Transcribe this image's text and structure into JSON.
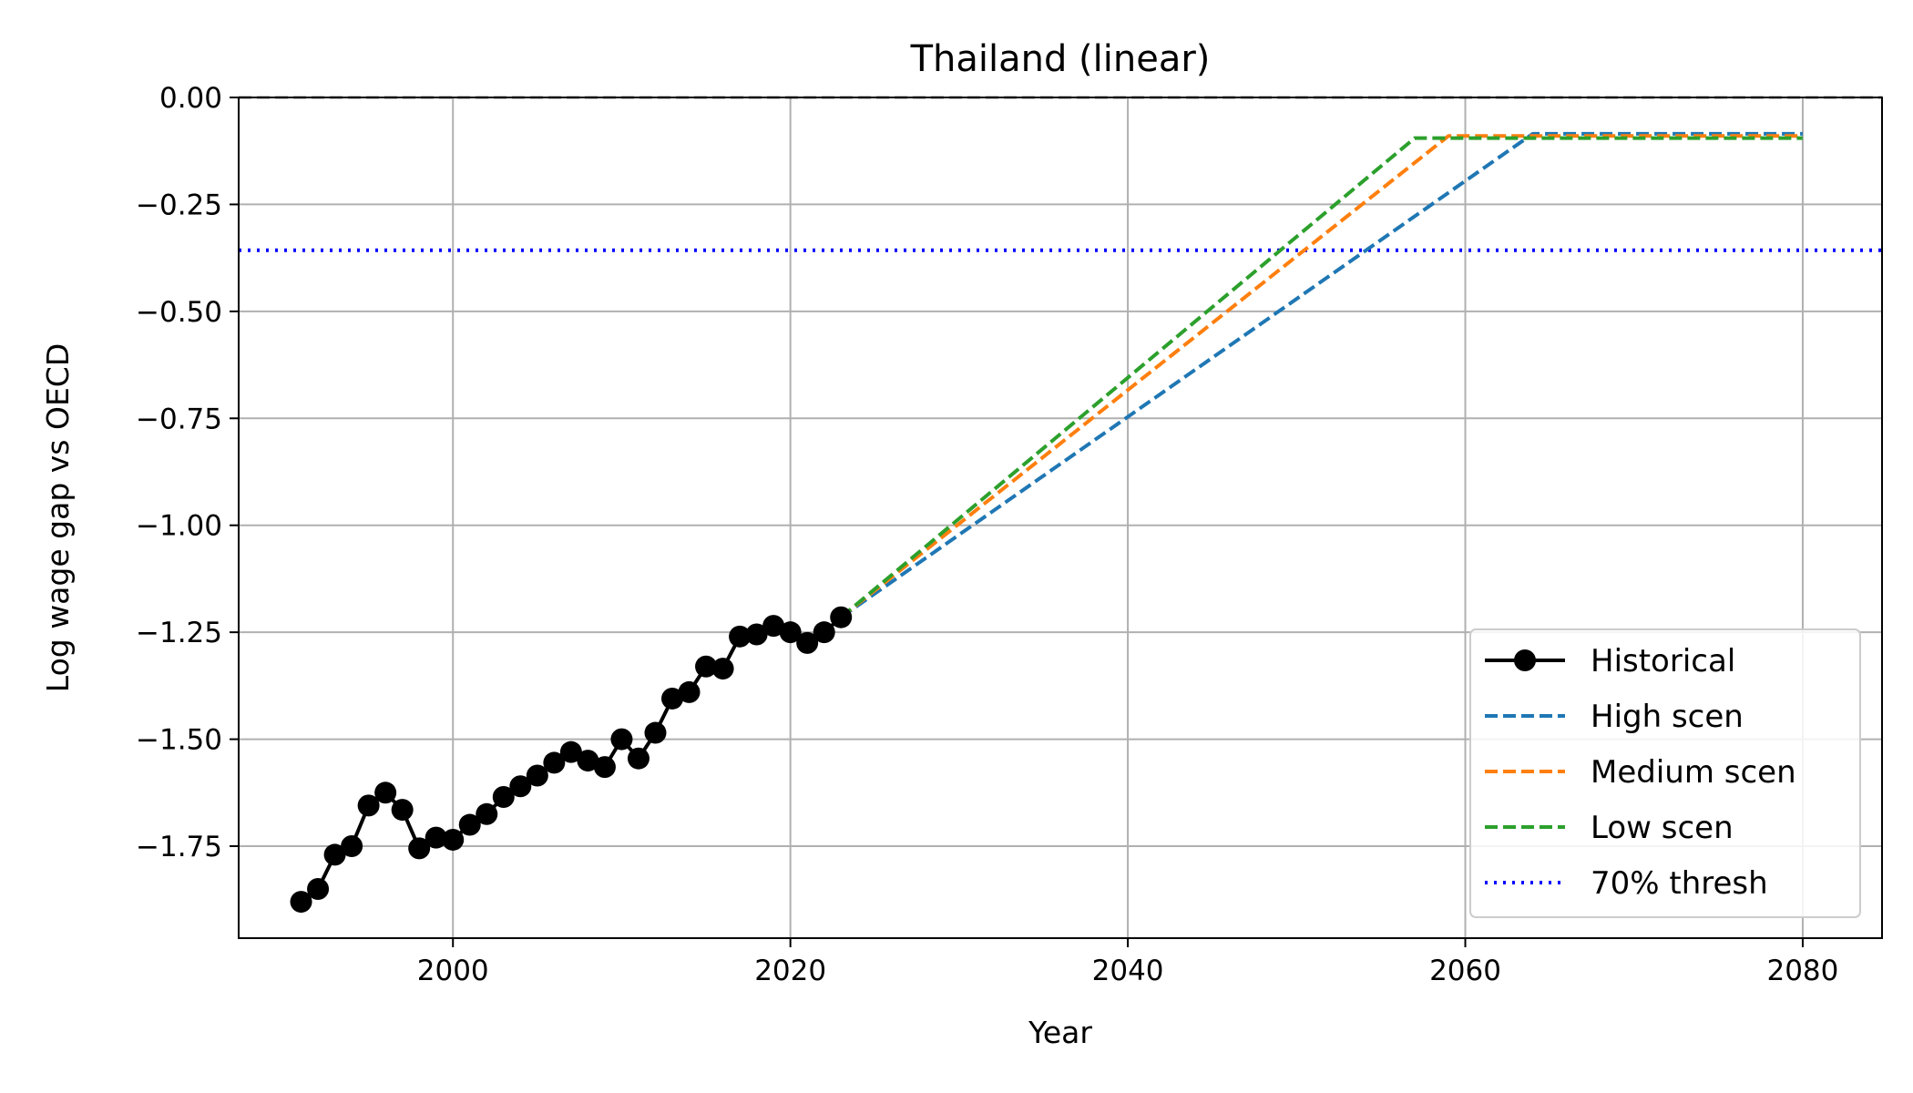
{
  "chart_data": {
    "type": "line",
    "title": "Thailand (linear)",
    "xlabel": "Year",
    "ylabel": "Log wage gap vs OECD",
    "xlim": [
      1987.3,
      2084.7
    ],
    "ylim": [
      -1.965,
      0.0
    ],
    "x_ticks": [
      2000,
      2020,
      2040,
      2060,
      2080
    ],
    "x_tick_labels": [
      "2000",
      "2020",
      "2040",
      "2060",
      "2080"
    ],
    "y_ticks": [
      0.0,
      -0.25,
      -0.5,
      -0.75,
      -1.0,
      -1.25,
      -1.5,
      -1.75
    ],
    "y_tick_labels": [
      "0.00",
      "−0.25",
      "−0.50",
      "−0.75",
      "−1.00",
      "−1.25",
      "−1.50",
      "−1.75"
    ],
    "grid": true,
    "legend_position": "lower-right",
    "reference_lines": [
      {
        "y": 0.0,
        "style": "dashed",
        "color": "#000000"
      }
    ],
    "series": [
      {
        "name": "Historical",
        "color": "#000000",
        "style": "solid-marker",
        "x": [
          1991,
          1992,
          1993,
          1994,
          1995,
          1996,
          1997,
          1998,
          1999,
          2000,
          2001,
          2002,
          2003,
          2004,
          2005,
          2006,
          2007,
          2008,
          2009,
          2010,
          2011,
          2012,
          2013,
          2014,
          2015,
          2016,
          2017,
          2018,
          2019,
          2020,
          2021,
          2022,
          2023
        ],
        "y": [
          -1.88,
          -1.85,
          -1.77,
          -1.75,
          -1.655,
          -1.625,
          -1.665,
          -1.755,
          -1.73,
          -1.735,
          -1.7,
          -1.675,
          -1.635,
          -1.61,
          -1.585,
          -1.555,
          -1.53,
          -1.55,
          -1.565,
          -1.5,
          -1.545,
          -1.485,
          -1.405,
          -1.39,
          -1.33,
          -1.335,
          -1.26,
          -1.255,
          -1.235,
          -1.25,
          -1.275,
          -1.25,
          -1.215
        ]
      },
      {
        "name": "High scen",
        "color": "#1f77b4",
        "style": "dashed",
        "x": [
          2023,
          2064,
          2080
        ],
        "y": [
          -1.215,
          -0.085,
          -0.085
        ]
      },
      {
        "name": "Medium scen",
        "color": "#ff7f0e",
        "style": "dashed",
        "x": [
          2023,
          2059,
          2080
        ],
        "y": [
          -1.215,
          -0.09,
          -0.09
        ]
      },
      {
        "name": "Low scen",
        "color": "#2ca02c",
        "style": "dashed",
        "x": [
          2023,
          2057,
          2080
        ],
        "y": [
          -1.215,
          -0.095,
          -0.095
        ]
      },
      {
        "name": "70% thresh",
        "color": "#0000ff",
        "style": "dotted",
        "x": [
          1987.3,
          2084.7
        ],
        "y": [
          -0.357,
          -0.357
        ]
      }
    ]
  }
}
